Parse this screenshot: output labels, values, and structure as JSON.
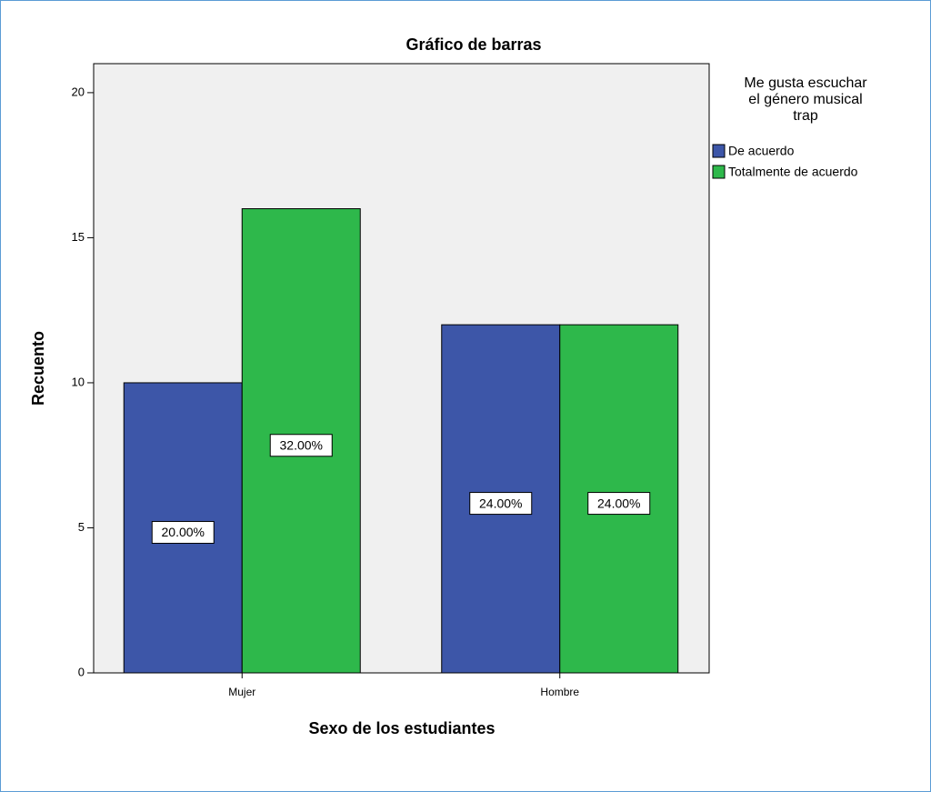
{
  "chart_data": {
    "type": "bar",
    "title": "Gráfico de barras",
    "x_label": "Sexo de los estudiantes",
    "y_label": "Recuento",
    "legend_title": [
      "Me gusta escuchar",
      "el género  musical",
      "trap"
    ],
    "categories": [
      "Mujer",
      "Hombre"
    ],
    "series": [
      {
        "name": "De acuerdo",
        "color": "#3d56a8",
        "values": [
          10,
          12
        ],
        "labels": [
          "20.00%",
          "24.00%"
        ]
      },
      {
        "name": "Totalmente de acuerdo",
        "color": "#2eb84b",
        "values": [
          16,
          12
        ],
        "labels": [
          "32.00%",
          "24.00%"
        ]
      }
    ],
    "ylim": [
      0,
      21
    ],
    "yticks": [
      0,
      5,
      10,
      15,
      20
    ],
    "grid": false,
    "legend": "right"
  }
}
